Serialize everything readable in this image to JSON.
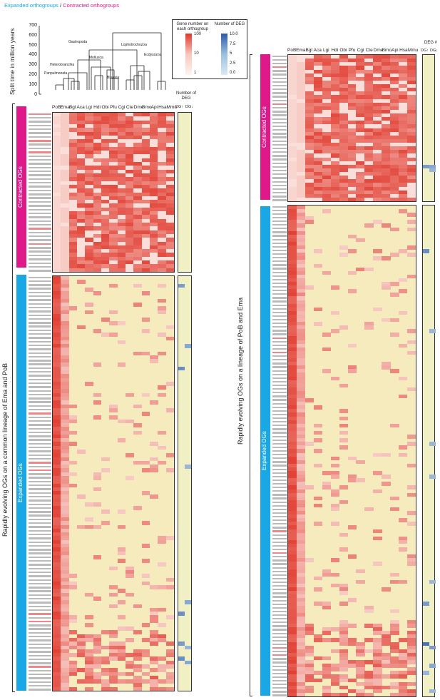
{
  "caption": {
    "expanded": "Expanded orthogroups",
    "sep": " / ",
    "contracted": "Contracted orthogroups"
  },
  "colors": {
    "expanded": "#1aa7e6",
    "contracted": "#e0198a",
    "heat_low": "#fdf1ec",
    "heat_high": "#e0362a",
    "bg": "#f5ebbd",
    "deg_low": "#c7dcec",
    "deg_high": "#2c5aa8"
  },
  "tree": {
    "ylabel": "Split time in million years",
    "yticks": [
      "700",
      "600",
      "500",
      "400",
      "300",
      "200",
      "100",
      "0"
    ],
    "clades": [
      "Gastropoda",
      "Mollusca",
      "Lophotrochozoa",
      "Heterobranchia",
      "Ecdysozoa",
      "Panpulmonata",
      "Bivalvia"
    ]
  },
  "species": [
    "PoB",
    "Ema",
    "Bgl",
    "Aca",
    "Lgi",
    "Hdi",
    "Obi",
    "Pfu",
    "Cgi",
    "Cte",
    "Dme",
    "Bmo",
    "Api",
    "Hsa",
    "Mmu"
  ],
  "legend": {
    "gene_title": "Gene number on each orthogroup",
    "gene_ticks": [
      "100",
      "10",
      "1"
    ],
    "deg_title": "Number of DEG",
    "deg_ticks": [
      "10.0",
      "7.5",
      "5",
      "2.5",
      "0.0"
    ]
  },
  "left_panel": {
    "side_label": "Rapidly evolving OGs on a common lineage of Ema and PoB",
    "contracted_label": "Contracted OGs",
    "expanded_label": "Expanded OGs",
    "deg_header": "Number of DEG",
    "deg_cols": [
      "DG↑",
      "DG↓"
    ]
  },
  "right_panel": {
    "side_label": "Rapidly evolving OGs on a lineage of PoB and Ema",
    "contracted_label": "Contracted OGs",
    "expanded_label": "Expanded OGs",
    "deg_header": "DEG #",
    "deg_cols": [
      "DG↑",
      "DG↓"
    ]
  }
}
